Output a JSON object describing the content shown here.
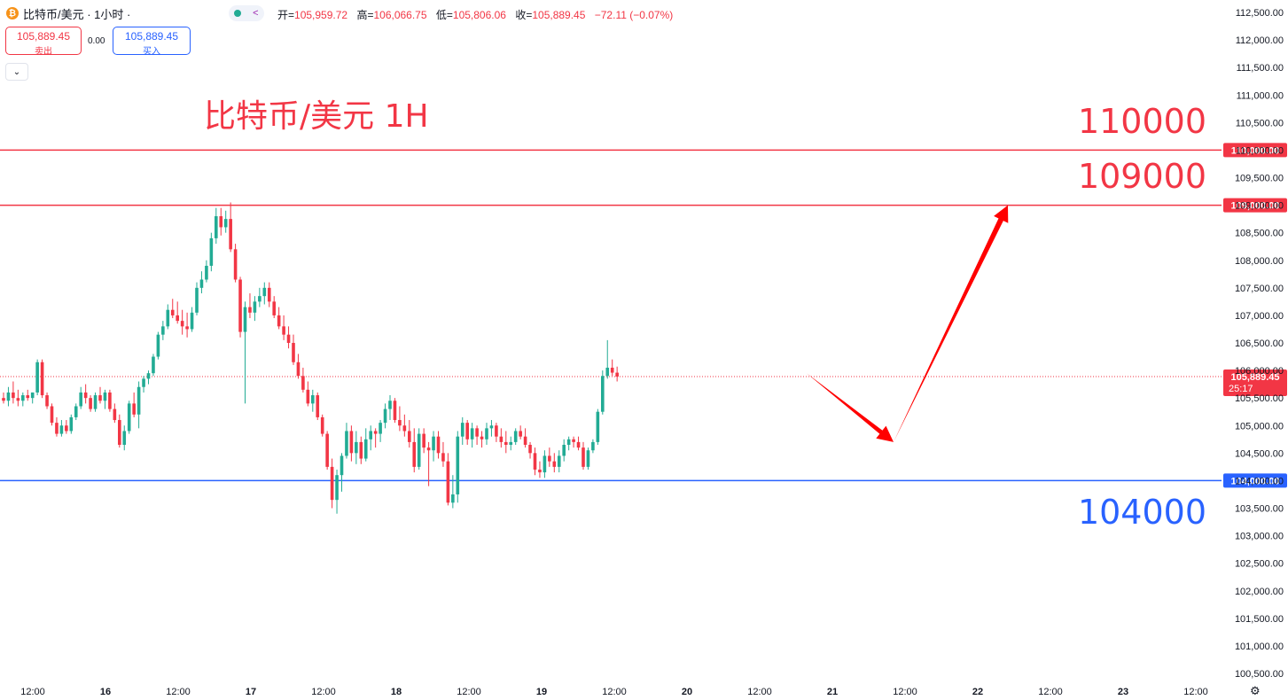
{
  "header": {
    "coin_icon": "bitcoin-icon",
    "symbol": "比特币/美元 · 1小时 ·",
    "ohlc": {
      "open_label": "开",
      "open": "105,959.72",
      "high_label": "高",
      "high": "106,066.75",
      "low_label": "低",
      "low": "105,806.06",
      "close_label": "收",
      "close": "105,889.45",
      "change": "−72.11 (−0.07%)"
    }
  },
  "trade": {
    "sell_price": "105,889.45",
    "sell_label": "卖出",
    "spread": "0.00",
    "buy_price": "105,889.45",
    "buy_label": "买入"
  },
  "annotations": {
    "title": "比特币/美元 1H",
    "level_110": "110000",
    "level_109": "109000",
    "level_104": "104000"
  },
  "colors": {
    "up": "#22ab94",
    "down": "#f23645",
    "resistance": "#f23645",
    "support": "#2962ff",
    "arrow": "#ff0000"
  },
  "chart_data": {
    "type": "candlestick",
    "y_axis_ticks": [
      "112,500.00",
      "112,000.00",
      "111,500.00",
      "111,000.00",
      "110,500.00",
      "110,000.00",
      "109,500.00",
      "109,000.00",
      "108,500.00",
      "108,000.00",
      "107,500.00",
      "107,000.00",
      "106,500.00",
      "106,000.00",
      "105,500.00",
      "105,000.00",
      "104,500.00",
      "104,000.00",
      "103,500.00",
      "103,000.00",
      "102,500.00",
      "102,000.00",
      "101,500.00",
      "101,000.00",
      "100,500.00"
    ],
    "ylim": [
      100400,
      112700
    ],
    "x_axis_labels": [
      "12:00",
      "16",
      "12:00",
      "17",
      "12:00",
      "18",
      "12:00",
      "19",
      "12:00",
      "20",
      "12:00",
      "21",
      "12:00",
      "22",
      "12:00",
      "23",
      "12:00"
    ],
    "horizontal_lines": [
      {
        "price": 110000,
        "label": "110,000.00",
        "color": "#f23645"
      },
      {
        "price": 109000,
        "label": "109,000.00",
        "color": "#f23645"
      },
      {
        "price": 104000,
        "label": "104,000.00",
        "color": "#2962ff"
      }
    ],
    "last_price": {
      "price": 105889.45,
      "label": "105,889.45",
      "countdown": "25:17"
    },
    "forecast_path": [
      105950,
      104700,
      109000
    ],
    "candles_ohlc": [
      [
        105500,
        105600,
        105400,
        105450
      ],
      [
        105450,
        105700,
        105350,
        105600
      ],
      [
        105600,
        105800,
        105400,
        105500
      ],
      [
        105500,
        105650,
        105350,
        105450
      ],
      [
        105450,
        105600,
        105350,
        105550
      ],
      [
        105550,
        105650,
        105450,
        105500
      ],
      [
        105500,
        105600,
        105400,
        105600
      ],
      [
        105600,
        106200,
        105550,
        106150
      ],
      [
        106150,
        106200,
        105500,
        105550
      ],
      [
        105550,
        105600,
        105300,
        105350
      ],
      [
        105350,
        105400,
        105000,
        105050
      ],
      [
        105050,
        105150,
        104800,
        104850
      ],
      [
        104850,
        105100,
        104800,
        105000
      ],
      [
        105000,
        105100,
        104850,
        104900
      ],
      [
        104900,
        105200,
        104850,
        105150
      ],
      [
        105150,
        105400,
        105100,
        105350
      ],
      [
        105350,
        105700,
        105300,
        105600
      ],
      [
        105600,
        105750,
        105400,
        105500
      ],
      [
        105500,
        105550,
        105250,
        105300
      ],
      [
        105300,
        105600,
        105250,
        105550
      ],
      [
        105550,
        105700,
        105400,
        105450
      ],
      [
        105450,
        105650,
        105300,
        105600
      ],
      [
        105600,
        105650,
        105250,
        105300
      ],
      [
        105300,
        105400,
        105050,
        105100
      ],
      [
        105100,
        105200,
        104600,
        104650
      ],
      [
        104650,
        105000,
        104550,
        104900
      ],
      [
        104900,
        105450,
        104850,
        105400
      ],
      [
        105400,
        105600,
        105150,
        105200
      ],
      [
        105200,
        105800,
        104950,
        105700
      ],
      [
        105700,
        105900,
        105600,
        105850
      ],
      [
        105850,
        106000,
        105750,
        105950
      ],
      [
        105950,
        106300,
        105900,
        106250
      ],
      [
        106250,
        106700,
        106200,
        106650
      ],
      [
        106650,
        106900,
        106550,
        106800
      ],
      [
        106800,
        107200,
        106750,
        107100
      ],
      [
        107100,
        107300,
        106950,
        107000
      ],
      [
        107000,
        107250,
        106850,
        106900
      ],
      [
        106900,
        107100,
        106650,
        106800
      ],
      [
        106800,
        107050,
        106600,
        106750
      ],
      [
        106750,
        107150,
        106700,
        107050
      ],
      [
        107050,
        107600,
        107000,
        107500
      ],
      [
        107500,
        107800,
        107400,
        107650
      ],
      [
        107650,
        108000,
        107600,
        107900
      ],
      [
        107900,
        108500,
        107800,
        108400
      ],
      [
        108400,
        108950,
        108300,
        108800
      ],
      [
        108800,
        108950,
        108450,
        108600
      ],
      [
        108600,
        108900,
        108500,
        108750
      ],
      [
        108750,
        109050,
        108150,
        108200
      ],
      [
        108200,
        108300,
        107600,
        107650
      ],
      [
        107650,
        107700,
        106600,
        106700
      ],
      [
        106700,
        107250,
        105400,
        107150
      ],
      [
        107150,
        107400,
        106950,
        107050
      ],
      [
        107050,
        107350,
        106900,
        107250
      ],
      [
        107250,
        107500,
        107150,
        107350
      ],
      [
        107350,
        107600,
        107200,
        107500
      ],
      [
        107500,
        107600,
        107150,
        107250
      ],
      [
        107250,
        107350,
        106950,
        107000
      ],
      [
        107000,
        107150,
        106750,
        106800
      ],
      [
        106800,
        107000,
        106550,
        106650
      ],
      [
        106650,
        106800,
        106400,
        106500
      ],
      [
        106500,
        106650,
        106100,
        106150
      ],
      [
        106150,
        106300,
        105850,
        105900
      ],
      [
        105900,
        106050,
        105600,
        105650
      ],
      [
        105650,
        105800,
        105350,
        105400
      ],
      [
        105400,
        105650,
        105250,
        105550
      ],
      [
        105550,
        105600,
        105100,
        105150
      ],
      [
        105150,
        105200,
        104800,
        104850
      ],
      [
        104850,
        104900,
        104200,
        104250
      ],
      [
        104250,
        104400,
        103500,
        103650
      ],
      [
        103650,
        104200,
        103400,
        104100
      ],
      [
        104100,
        104500,
        103800,
        104450
      ],
      [
        104450,
        105050,
        104400,
        104900
      ],
      [
        104900,
        105000,
        104350,
        104500
      ],
      [
        104500,
        104900,
        104300,
        104700
      ],
      [
        104700,
        104800,
        104300,
        104400
      ],
      [
        104400,
        104950,
        104350,
        104750
      ],
      [
        104750,
        105000,
        104550,
        104900
      ],
      [
        104900,
        104950,
        104600,
        104850
      ],
      [
        104850,
        105100,
        104700,
        105050
      ],
      [
        105050,
        105400,
        104950,
        105300
      ],
      [
        105300,
        105550,
        105100,
        105450
      ],
      [
        105450,
        105500,
        105050,
        105100
      ],
      [
        105100,
        105350,
        104900,
        105000
      ],
      [
        105000,
        105200,
        104800,
        104900
      ],
      [
        104900,
        105100,
        104600,
        104700
      ],
      [
        104700,
        104950,
        104150,
        104250
      ],
      [
        104250,
        104950,
        104200,
        104850
      ],
      [
        104850,
        104950,
        104500,
        104600
      ],
      [
        104600,
        104700,
        103900,
        104550
      ],
      [
        104550,
        104900,
        104350,
        104800
      ],
      [
        104800,
        104900,
        104400,
        104500
      ],
      [
        104500,
        104700,
        104250,
        104350
      ],
      [
        104350,
        104500,
        103550,
        103600
      ],
      [
        103600,
        104100,
        103500,
        103750
      ],
      [
        103750,
        104900,
        103600,
        104800
      ],
      [
        104800,
        105150,
        104650,
        105050
      ],
      [
        105050,
        105100,
        104650,
        104750
      ],
      [
        104750,
        105050,
        104600,
        104950
      ],
      [
        104950,
        105000,
        104650,
        104800
      ],
      [
        104800,
        104900,
        104600,
        104750
      ],
      [
        104750,
        105050,
        104650,
        104950
      ],
      [
        104950,
        105100,
        104800,
        105000
      ],
      [
        105000,
        105050,
        104700,
        104800
      ],
      [
        104800,
        104950,
        104600,
        104700
      ],
      [
        104700,
        104900,
        104500,
        104650
      ],
      [
        104650,
        104800,
        104550,
        104700
      ],
      [
        104700,
        104950,
        104650,
        104900
      ],
      [
        104900,
        105000,
        104750,
        104800
      ],
      [
        104800,
        104950,
        104600,
        104650
      ],
      [
        104650,
        104700,
        104400,
        104500
      ],
      [
        104500,
        104600,
        104100,
        104200
      ],
      [
        104200,
        104350,
        104050,
        104150
      ],
      [
        104150,
        104550,
        104050,
        104450
      ],
      [
        104450,
        104600,
        104250,
        104350
      ],
      [
        104350,
        104500,
        104150,
        104250
      ],
      [
        104250,
        104550,
        104150,
        104450
      ],
      [
        104450,
        104750,
        104350,
        104650
      ],
      [
        104650,
        104800,
        104550,
        104750
      ],
      [
        104750,
        104800,
        104600,
        104700
      ],
      [
        104700,
        104800,
        104550,
        104600
      ],
      [
        104600,
        104700,
        104200,
        104250
      ],
      [
        104250,
        104600,
        104200,
        104550
      ],
      [
        104550,
        104750,
        104500,
        104700
      ],
      [
        104700,
        105300,
        104650,
        105250
      ],
      [
        105250,
        106000,
        105200,
        105900
      ],
      [
        105900,
        106550,
        105850,
        106050
      ],
      [
        106050,
        106200,
        105900,
        105960
      ],
      [
        105960,
        106070,
        105800,
        105889
      ]
    ]
  }
}
